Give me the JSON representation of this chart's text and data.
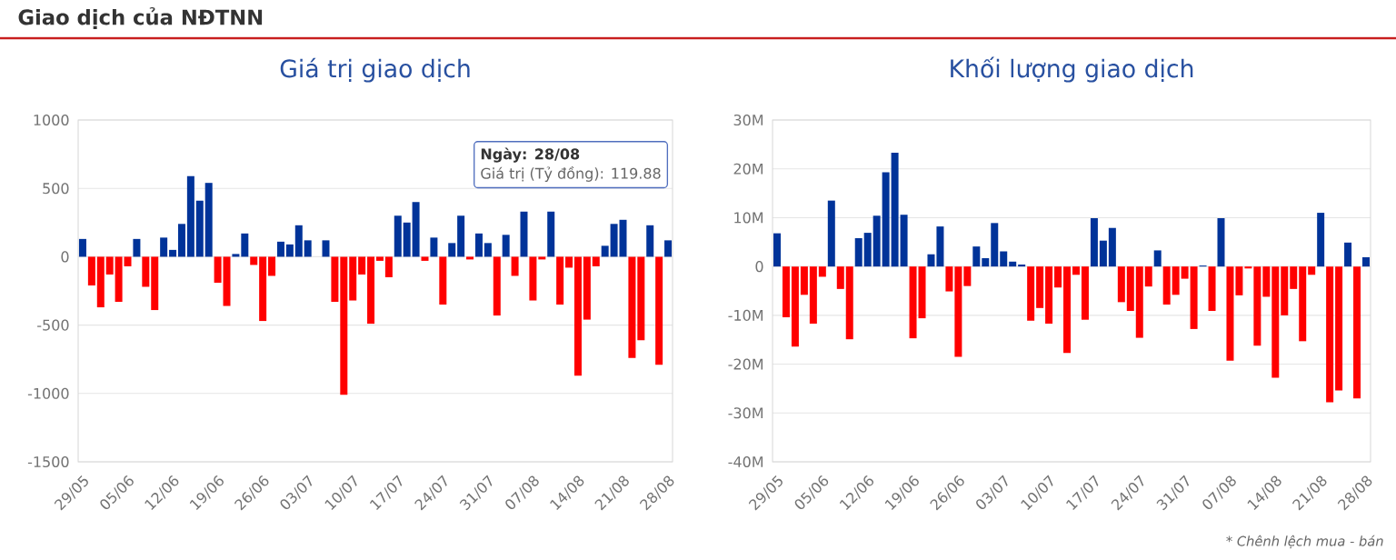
{
  "chart_data": [
    {
      "type": "bar",
      "title": "Giá trị giao dịch",
      "categories": [
        "29/05",
        null,
        null,
        null,
        null,
        "05/06",
        null,
        null,
        null,
        null,
        "12/06",
        null,
        null,
        null,
        null,
        "19/06",
        null,
        null,
        null,
        null,
        "26/06",
        null,
        null,
        null,
        null,
        "03/07",
        null,
        null,
        null,
        null,
        "10/07",
        null,
        null,
        null,
        null,
        "17/07",
        null,
        null,
        null,
        null,
        "24/07",
        null,
        null,
        null,
        null,
        "31/07",
        null,
        null,
        null,
        null,
        "07/08",
        null,
        null,
        null,
        null,
        "14/08",
        null,
        null,
        null,
        null,
        "21/08",
        null,
        null,
        null,
        null,
        "28/08"
      ],
      "values": [
        130,
        -210,
        -370,
        -130,
        -330,
        -70,
        130,
        -220,
        -390,
        140,
        50,
        240,
        590,
        410,
        540,
        -190,
        -360,
        20,
        170,
        -60,
        -470,
        -140,
        110,
        90,
        230,
        120,
        0,
        120,
        -330,
        -1010,
        -320,
        -130,
        -490,
        -30,
        -150,
        300,
        250,
        400,
        -30,
        140,
        -350,
        100,
        300,
        -20,
        170,
        100,
        -430,
        160,
        -140,
        330,
        -320,
        -20,
        330,
        -350,
        -80,
        -870,
        -460,
        -70,
        80,
        240,
        270,
        -740,
        -610,
        230,
        -790,
        119.88
      ],
      "colors": [
        "#003399",
        "#ff0000",
        "#ff0000",
        "#ff0000",
        "#ff0000",
        "#ff0000",
        "#003399",
        "#ff0000",
        "#ff0000",
        "#003399",
        "#003399",
        "#003399",
        "#003399",
        "#003399",
        "#003399",
        "#ff0000",
        "#ff0000",
        "#003399",
        "#003399",
        "#ff0000",
        "#ff0000",
        "#ff0000",
        "#003399",
        "#003399",
        "#003399",
        "#003399",
        "#003399",
        "#003399",
        "#ff0000",
        "#ff0000",
        "#ff0000",
        "#ff0000",
        "#ff0000",
        "#ff0000",
        "#ff0000",
        "#003399",
        "#003399",
        "#003399",
        "#ff0000",
        "#003399",
        "#ff0000",
        "#003399",
        "#003399",
        "#ff0000",
        "#003399",
        "#003399",
        "#ff0000",
        "#003399",
        "#ff0000",
        "#003399",
        "#ff0000",
        "#ff0000",
        "#003399",
        "#ff0000",
        "#ff0000",
        "#ff0000",
        "#ff0000",
        "#ff0000",
        "#003399",
        "#003399",
        "#003399",
        "#ff0000",
        "#ff0000",
        "#003399",
        "#ff0000",
        "#003399"
      ],
      "ylim": [
        -1500,
        1000
      ],
      "yticks": [
        -1500,
        -1000,
        -500,
        0,
        500,
        1000
      ],
      "grid": "y",
      "annotations": [
        "Giao dịch của NĐTNN",
        "Ngày: 28/08",
        "Giá trị (Tỷ đồng): 119.88"
      ]
    },
    {
      "type": "bar",
      "title": "Khối lượng giao dịch",
      "categories": [
        "29/05",
        null,
        null,
        null,
        null,
        "05/06",
        null,
        null,
        null,
        null,
        "12/06",
        null,
        null,
        null,
        null,
        "19/06",
        null,
        null,
        null,
        null,
        "26/06",
        null,
        null,
        null,
        null,
        "03/07",
        null,
        null,
        null,
        null,
        "10/07",
        null,
        null,
        null,
        null,
        "17/07",
        null,
        null,
        null,
        null,
        "24/07",
        null,
        null,
        null,
        null,
        "31/07",
        null,
        null,
        null,
        null,
        "07/08",
        null,
        null,
        null,
        null,
        "14/08",
        null,
        null,
        null,
        null,
        "21/08",
        null,
        null,
        null,
        null,
        "28/08"
      ],
      "values": [
        6.8,
        -10.4,
        -16.4,
        -5.8,
        -11.7,
        -2.1,
        13.5,
        -4.6,
        -14.9,
        5.8,
        6.9,
        10.4,
        19.3,
        23.3,
        10.6,
        -14.7,
        -10.6,
        2.5,
        8.2,
        -5.1,
        -18.5,
        -4.0,
        4.1,
        1.7,
        8.9,
        3.1,
        1.0,
        0.4,
        -11.1,
        -8.5,
        -11.7,
        -4.3,
        -17.7,
        -1.7,
        -10.9,
        9.9,
        5.3,
        7.9,
        -7.3,
        -9.1,
        -14.6,
        -4.1,
        3.3,
        -7.8,
        -5.8,
        -2.5,
        -12.8,
        0.2,
        -9.1,
        9.9,
        -19.3,
        -5.9,
        -0.4,
        -16.2,
        -6.2,
        -22.8,
        -10.0,
        -4.6,
        -15.3,
        -1.7,
        11.0,
        -27.8,
        -25.4,
        4.9,
        -27.0,
        1.9
      ],
      "colors": [
        "#003399",
        "#ff0000",
        "#ff0000",
        "#ff0000",
        "#ff0000",
        "#ff0000",
        "#003399",
        "#ff0000",
        "#ff0000",
        "#003399",
        "#003399",
        "#003399",
        "#003399",
        "#003399",
        "#003399",
        "#ff0000",
        "#ff0000",
        "#003399",
        "#003399",
        "#ff0000",
        "#ff0000",
        "#ff0000",
        "#003399",
        "#003399",
        "#003399",
        "#003399",
        "#003399",
        "#003399",
        "#ff0000",
        "#ff0000",
        "#ff0000",
        "#ff0000",
        "#ff0000",
        "#ff0000",
        "#ff0000",
        "#003399",
        "#003399",
        "#003399",
        "#ff0000",
        "#ff0000",
        "#ff0000",
        "#ff0000",
        "#003399",
        "#ff0000",
        "#ff0000",
        "#ff0000",
        "#ff0000",
        "#003399",
        "#ff0000",
        "#003399",
        "#ff0000",
        "#ff0000",
        "#ff0000",
        "#ff0000",
        "#ff0000",
        "#ff0000",
        "#ff0000",
        "#ff0000",
        "#ff0000",
        "#ff0000",
        "#003399",
        "#ff0000",
        "#ff0000",
        "#003399",
        "#ff0000",
        "#003399"
      ],
      "ylim": [
        -40,
        30
      ],
      "yticks": [
        {
          "value": -40,
          "label": "-40M"
        },
        {
          "value": -30,
          "label": "-30M"
        },
        {
          "value": -20,
          "label": "-20M"
        },
        {
          "value": -10,
          "label": "-10M"
        },
        {
          "value": 0,
          "label": "0"
        },
        {
          "value": 10,
          "label": "10M"
        },
        {
          "value": 20,
          "label": "20M"
        },
        {
          "value": 30,
          "label": "30M"
        }
      ],
      "grid": "y",
      "annotations": [
        "* Chênh lệch mua - bán"
      ]
    }
  ]
}
